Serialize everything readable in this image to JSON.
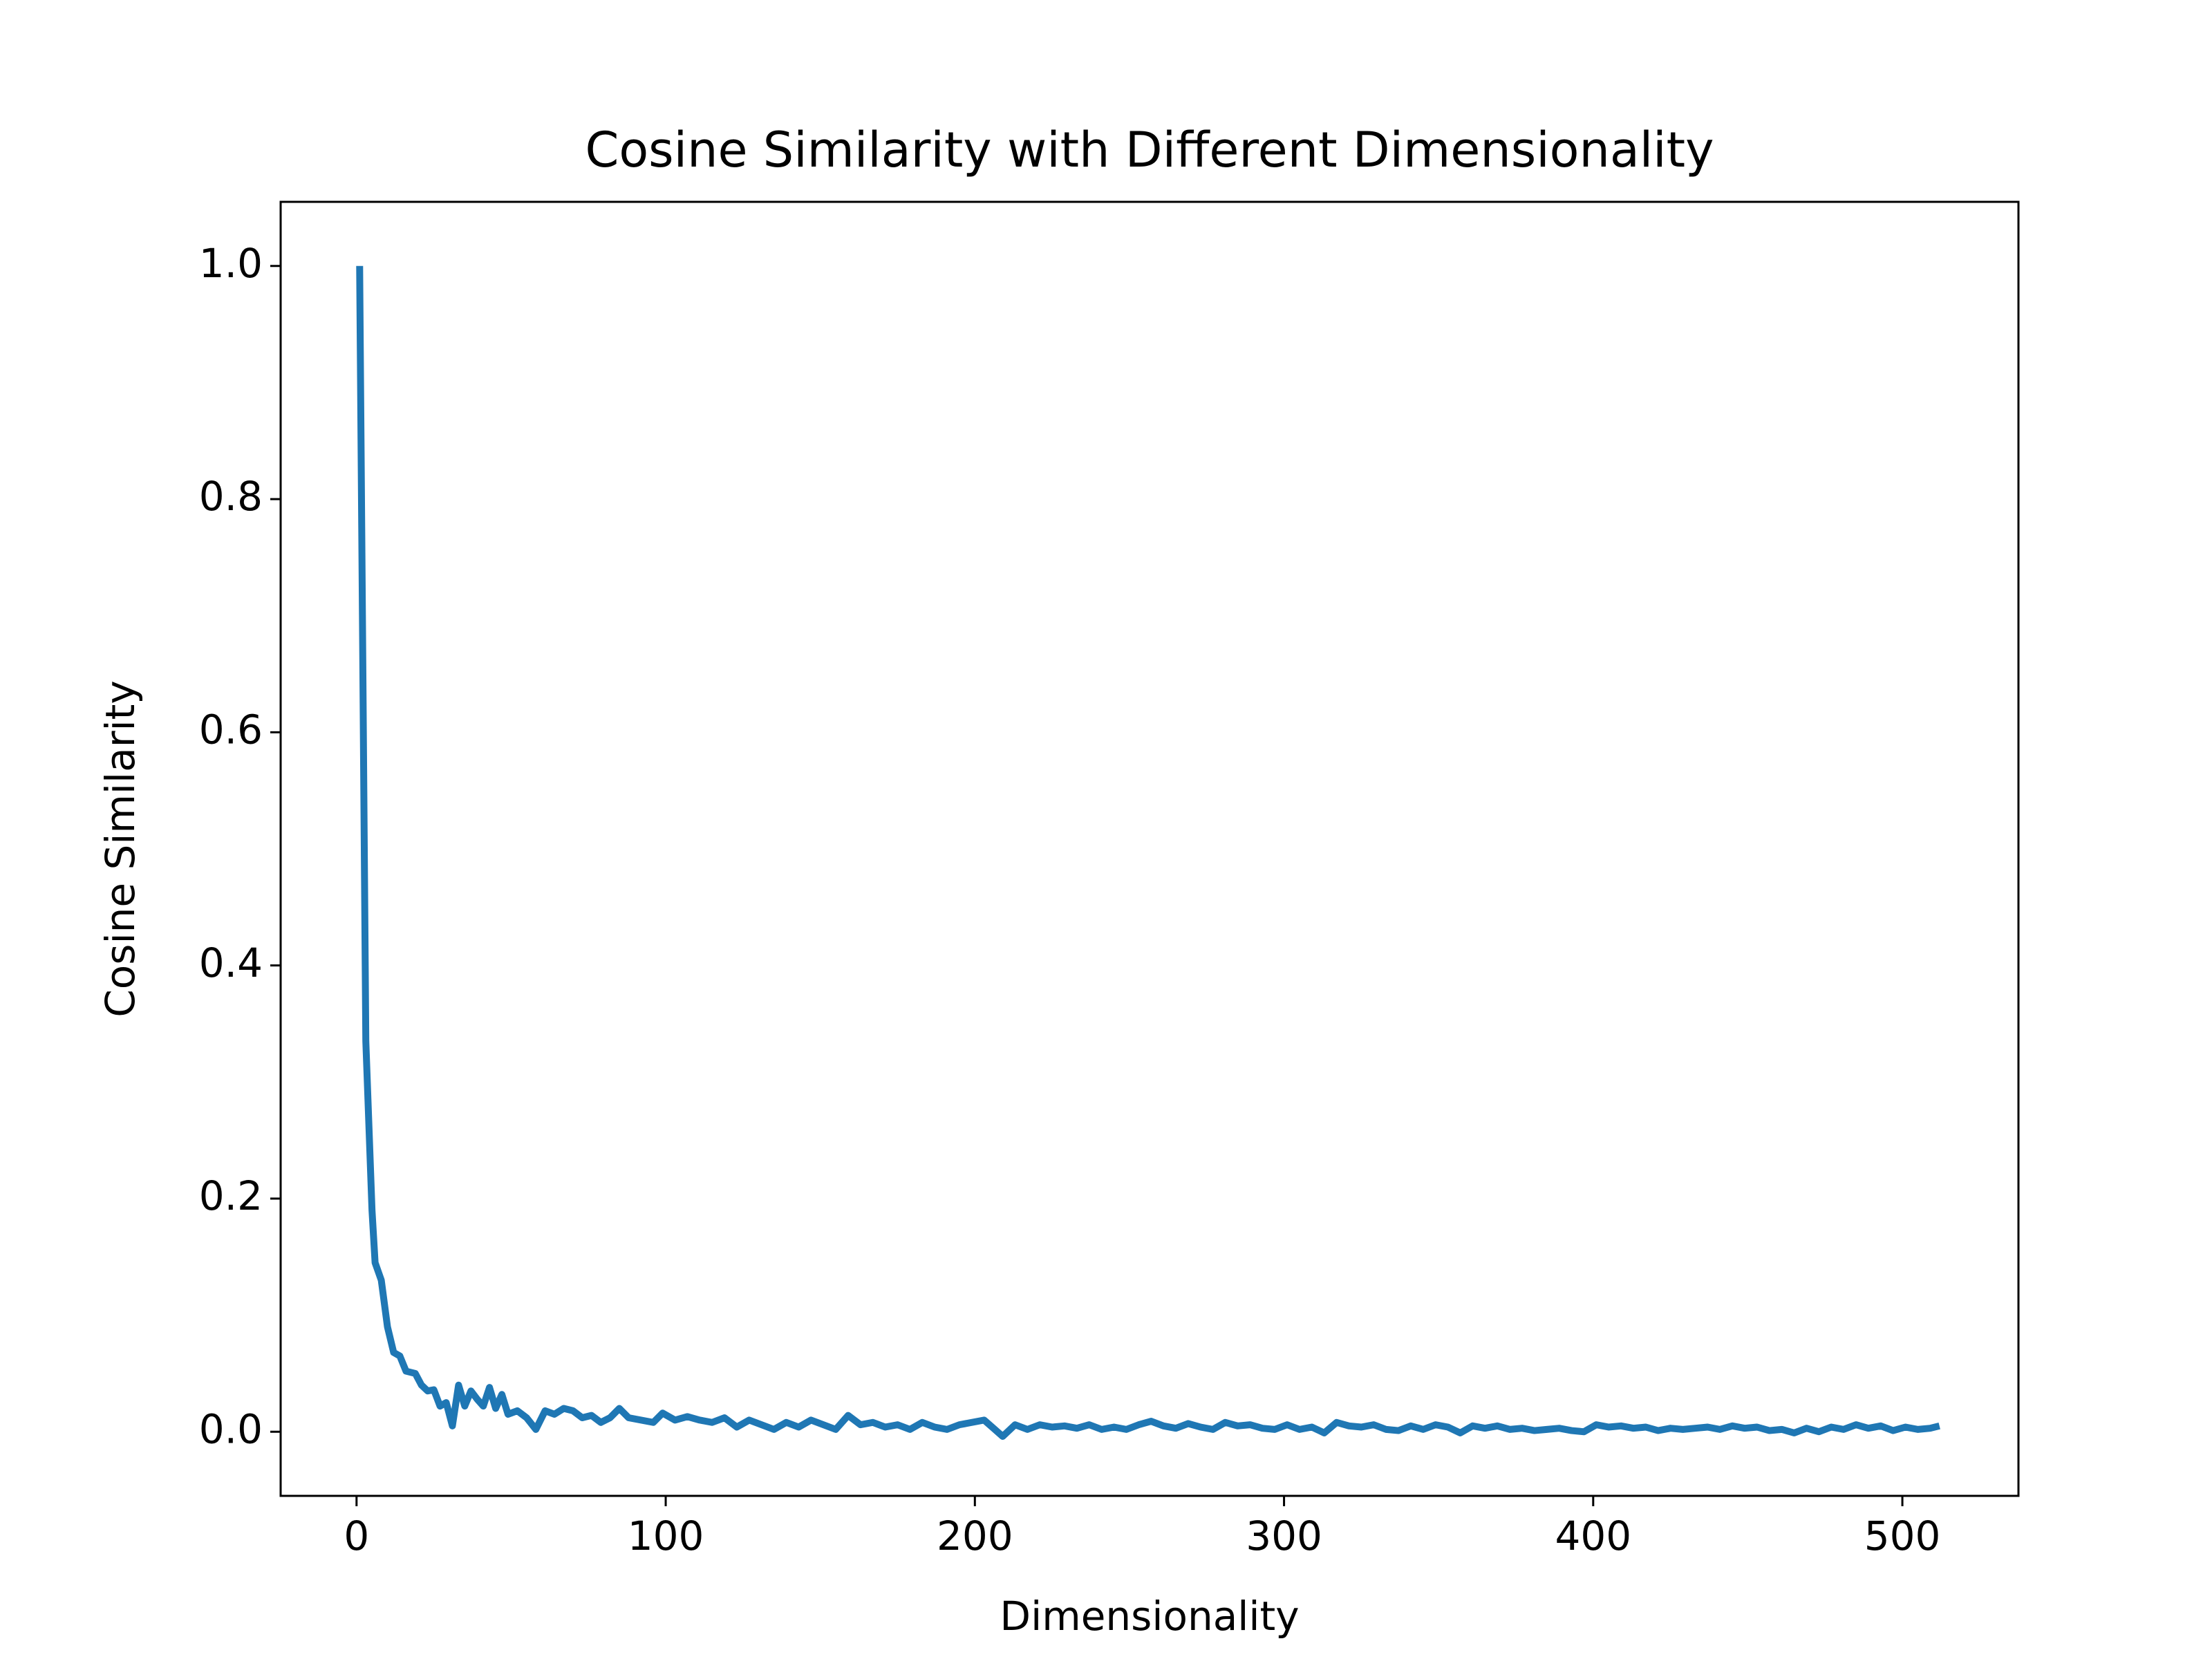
{
  "chart_data": {
    "type": "line",
    "title": "Cosine Similarity with Different Dimensionality",
    "x_label": "Dimensionality",
    "y_label": "Cosine Similarity",
    "color": "#1f77b4",
    "x": [
      1,
      3,
      5,
      6,
      8,
      10,
      12,
      14,
      16,
      19,
      21,
      23,
      25,
      27,
      29,
      31,
      33,
      35,
      37,
      39,
      41,
      43,
      45,
      47,
      49,
      52,
      55,
      58,
      61,
      64,
      67,
      70,
      73,
      76,
      79,
      82,
      85,
      88,
      92,
      96,
      99,
      103,
      107,
      111,
      115,
      119,
      123,
      127,
      131,
      135,
      139,
      143,
      147,
      151,
      155,
      159,
      163,
      167,
      171,
      175,
      179,
      183,
      187,
      191,
      195,
      199,
      203,
      206,
      209,
      213,
      217,
      221,
      225,
      229,
      233,
      237,
      241,
      245,
      249,
      253,
      257,
      261,
      265,
      269,
      273,
      277,
      281,
      285,
      289,
      293,
      297,
      301,
      305,
      309,
      313,
      317,
      321,
      325,
      329,
      333,
      337,
      341,
      345,
      349,
      353,
      357,
      361,
      365,
      369,
      373,
      377,
      381,
      385,
      389,
      393,
      397,
      401,
      405,
      409,
      413,
      417,
      421,
      425,
      429,
      433,
      437,
      441,
      445,
      449,
      453,
      457,
      461,
      465,
      469,
      473,
      477,
      481,
      485,
      489,
      493,
      497,
      501,
      505,
      509,
      512
    ],
    "values": [
      1.0,
      0.335,
      0.19,
      0.145,
      0.13,
      0.09,
      0.068,
      0.065,
      0.052,
      0.05,
      0.04,
      0.035,
      0.036,
      0.022,
      0.025,
      0.005,
      0.04,
      0.022,
      0.035,
      0.028,
      0.022,
      0.038,
      0.02,
      0.032,
      0.015,
      0.018,
      0.012,
      0.002,
      0.018,
      0.015,
      0.02,
      0.018,
      0.012,
      0.014,
      0.008,
      0.012,
      0.02,
      0.012,
      0.01,
      0.008,
      0.016,
      0.01,
      0.013,
      0.01,
      0.008,
      0.012,
      0.004,
      0.01,
      0.006,
      0.002,
      0.008,
      0.004,
      0.01,
      0.006,
      0.002,
      0.014,
      0.006,
      0.008,
      0.004,
      0.006,
      0.002,
      0.008,
      0.004,
      0.002,
      0.006,
      0.008,
      0.01,
      0.003,
      -0.004,
      0.006,
      0.002,
      0.006,
      0.004,
      0.005,
      0.003,
      0.006,
      0.002,
      0.004,
      0.002,
      0.006,
      0.009,
      0.005,
      0.003,
      0.007,
      0.004,
      0.002,
      0.008,
      0.005,
      0.006,
      0.003,
      0.002,
      0.006,
      0.002,
      0.004,
      -0.001,
      0.008,
      0.005,
      0.004,
      0.006,
      0.002,
      0.001,
      0.005,
      0.002,
      0.006,
      0.004,
      -0.001,
      0.005,
      0.003,
      0.005,
      0.002,
      0.003,
      0.001,
      0.002,
      0.003,
      0.001,
      0.0,
      0.006,
      0.004,
      0.005,
      0.003,
      0.004,
      0.001,
      0.003,
      0.002,
      0.003,
      0.004,
      0.002,
      0.005,
      0.003,
      0.004,
      0.001,
      0.002,
      -0.001,
      0.003,
      0.0,
      0.004,
      0.002,
      0.006,
      0.003,
      0.005,
      0.001,
      0.004,
      0.002,
      0.003,
      0.005
    ],
    "xlim": [
      -24.55,
      537.55
    ],
    "ylim": [
      -0.055,
      1.055
    ],
    "xticks": [
      0,
      100,
      200,
      300,
      400,
      500
    ],
    "yticks": [
      {
        "value": 0,
        "label": "0.0"
      },
      0.2,
      0.4,
      0.6,
      0.8,
      {
        "value": 1,
        "label": "1.0"
      }
    ]
  }
}
